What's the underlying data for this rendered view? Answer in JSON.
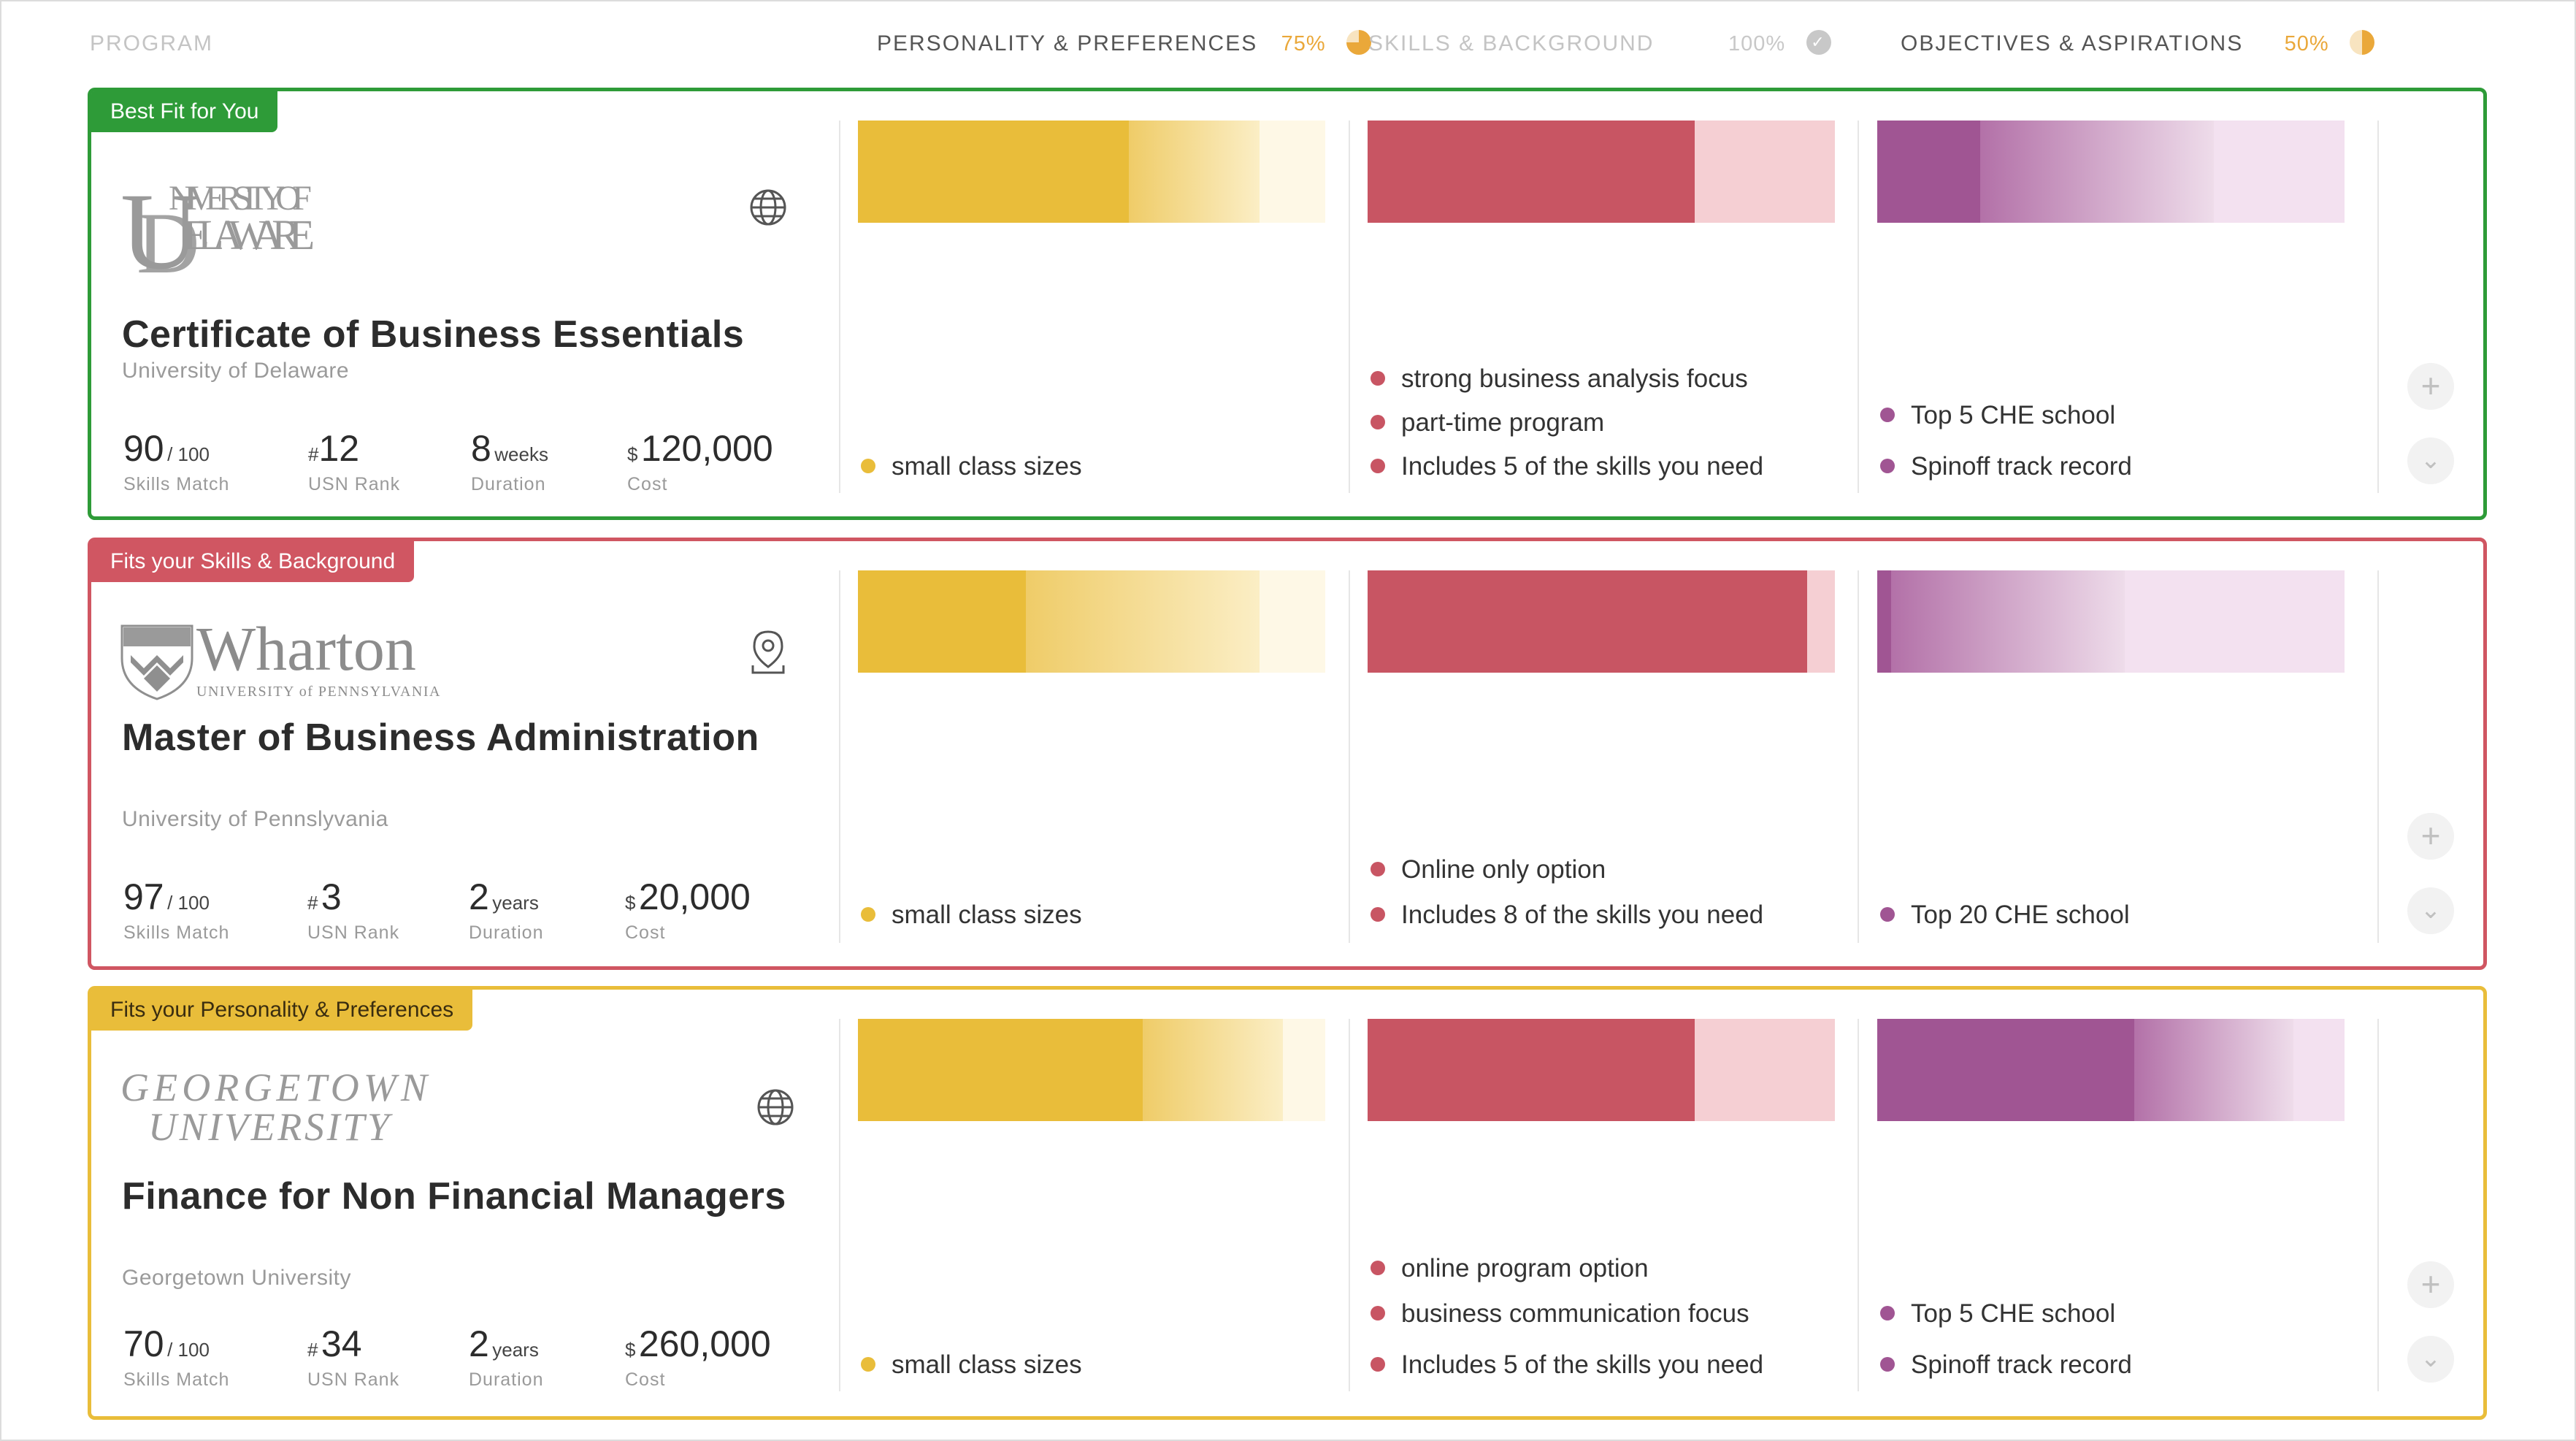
{
  "header": {
    "program": "PROGRAM",
    "personality": {
      "label": "PERSONALITY & PREFERENCES",
      "pct": "75%"
    },
    "skills": {
      "label": "SKILLS & BACKGROUND",
      "pct": "100%"
    },
    "objectives": {
      "label": "OBJECTIVES & ASPIRATIONS",
      "pct": "50%"
    }
  },
  "colors": {
    "green": "#2e9b38",
    "red": "#d05662",
    "yellow": "#e9bd3a",
    "purple": "#a05593"
  },
  "cards": [
    {
      "tag": "Best Fit for You",
      "logo": "UNIVERSITY OF DELAWARE",
      "icon": "globe-icon",
      "title": "Certificate of Business Essentials",
      "university": "University of Delaware",
      "match": "90",
      "match_of": "/ 100",
      "match_cap": "Skills Match",
      "rank_hash": "#",
      "rank": "12",
      "rank_cap": "USN Rank",
      "duration": "8",
      "duration_unit": "weeks",
      "duration_cap": "Duration",
      "cost_sym": "$",
      "cost": "120,000",
      "cost_cap": "Cost",
      "personality_bullets": [
        "small class sizes"
      ],
      "skills_bullets": [
        "strong business analysis focus",
        "part-time program",
        "Includes 5 of the skills you need"
      ],
      "objective_bullets": [
        "Top 5 CHE school",
        "Spinoff track record"
      ],
      "bar_fill": {
        "personality": 0.58,
        "skills": 0.7,
        "objectives": 0.22
      }
    },
    {
      "tag": "Fits your Skills & Background",
      "logo": "Wharton",
      "logo_sub": "UNIVERSITY of PENNSYLVANIA",
      "icon": "location-icon",
      "title": "Master of Business Administration",
      "university": "University of Pennslyvania",
      "match": "97",
      "match_of": "/ 100",
      "match_cap": "Skills Match",
      "rank_hash": "#",
      "rank": "3",
      "rank_cap": "USN Rank",
      "duration": "2",
      "duration_unit": "years",
      "duration_cap": "Duration",
      "cost_sym": "$",
      "cost": "20,000",
      "cost_cap": "Cost",
      "personality_bullets": [
        "small class sizes"
      ],
      "skills_bullets": [
        "Online only option",
        "Includes 8 of the skills you need"
      ],
      "objective_bullets": [
        "Top 20 CHE school"
      ],
      "bar_fill": {
        "personality": 0.36,
        "skills": 0.94,
        "objectives": 0.03
      }
    },
    {
      "tag": "Fits your Personality & Preferences",
      "logo": "GEORGETOWN UNIVERSITY",
      "icon": "globe-icon",
      "title": "Finance for Non Financial Managers",
      "university": "Georgetown University",
      "match": "70",
      "match_of": "/ 100",
      "match_cap": "Skills Match",
      "rank_hash": "#",
      "rank": "34",
      "rank_cap": "USN Rank",
      "duration": "2",
      "duration_unit": "years",
      "duration_cap": "Duration",
      "cost_sym": "$",
      "cost": "260,000",
      "cost_cap": "Cost",
      "personality_bullets": [
        "small class sizes"
      ],
      "skills_bullets": [
        "online program option",
        "business communication focus",
        "Includes 5 of the skills you need"
      ],
      "objective_bullets": [
        "Top 5 CHE school",
        "Spinoff track record"
      ],
      "bar_fill": {
        "personality": 0.61,
        "skills": 0.7,
        "objectives": 0.55
      }
    }
  ]
}
